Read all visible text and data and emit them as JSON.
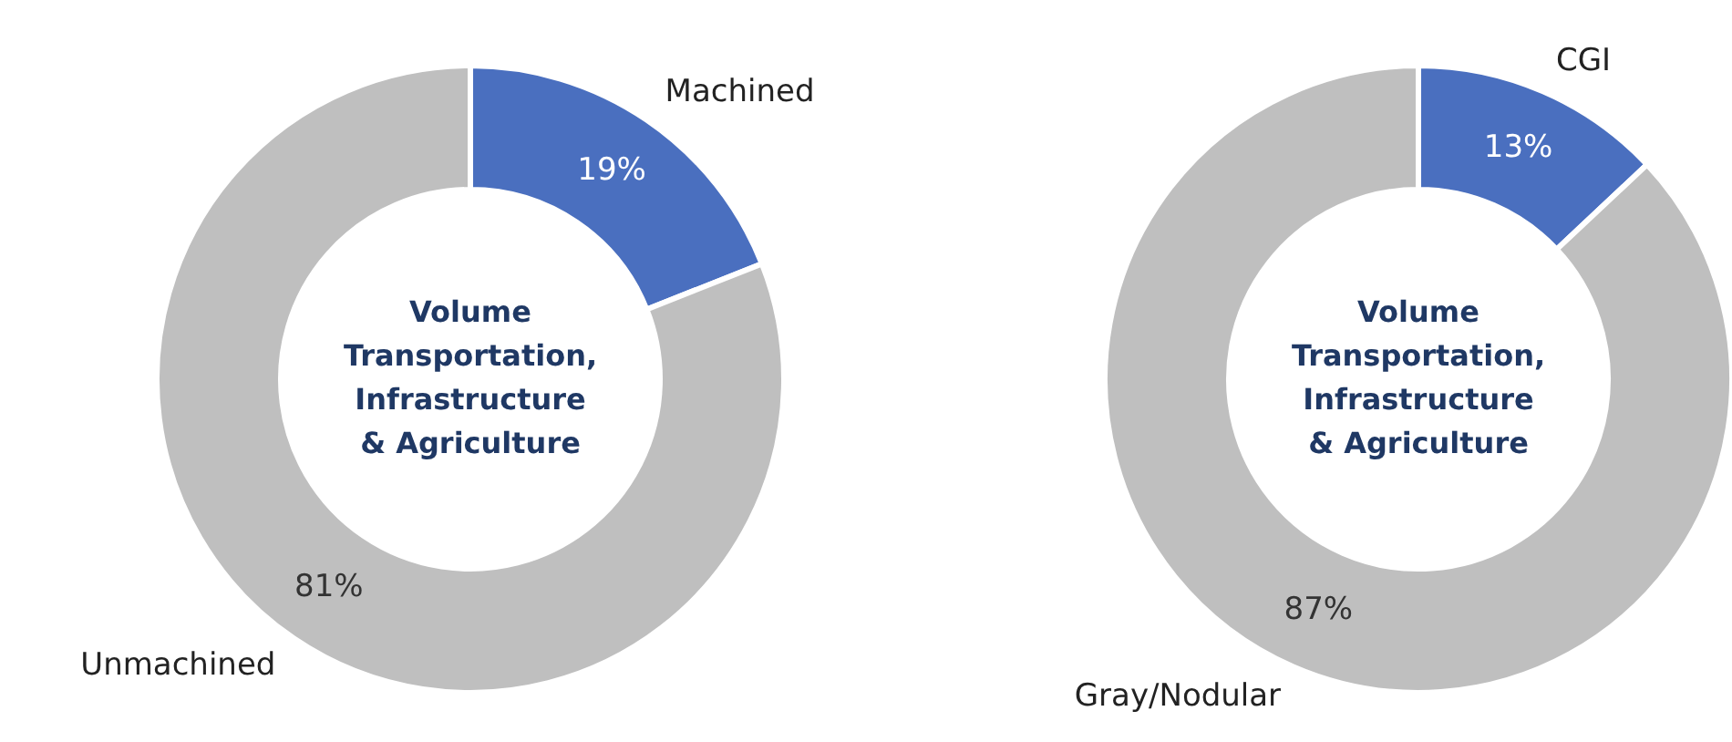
{
  "chart_data": [
    {
      "type": "donut",
      "title": "Volume\nTransportation,\nInfrastructure\n& Agriculture",
      "categories": [
        "Machined",
        "Unmachined"
      ],
      "values": [
        19,
        81
      ],
      "colors": [
        "#4a6fbf",
        "#bfbfbf"
      ],
      "value_labels": [
        "19%",
        "81%"
      ]
    },
    {
      "type": "donut",
      "title": "Volume\nTransportation,\nInfrastructure\n& Agriculture",
      "categories": [
        "CGI",
        "Gray/Nodular"
      ],
      "values": [
        13,
        87
      ],
      "colors": [
        "#4a6fbf",
        "#bfbfbf"
      ],
      "value_labels": [
        "13%",
        "87%"
      ]
    }
  ]
}
